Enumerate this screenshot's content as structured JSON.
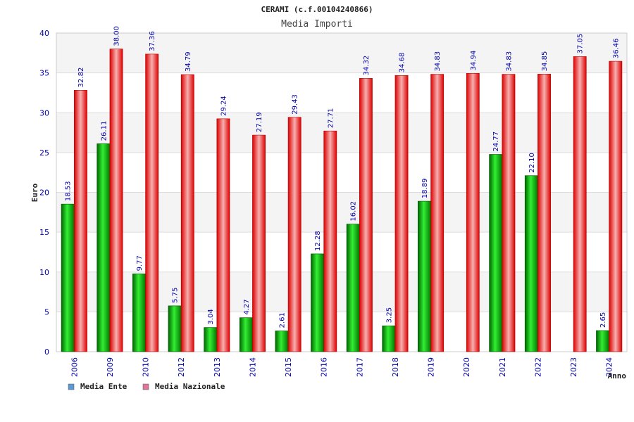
{
  "chart_data": {
    "type": "bar",
    "title": "CERAMI (c.f.00104240866)",
    "subtitle": "Media Importi",
    "xlabel": "Anno",
    "ylabel": "Euro",
    "ylim": [
      0,
      40
    ],
    "yticks": [
      0,
      5,
      10,
      15,
      20,
      25,
      30,
      35,
      40
    ],
    "grid": true,
    "legend_position": "bottom-left",
    "categories": [
      "2006",
      "2009",
      "2010",
      "2012",
      "2013",
      "2014",
      "2015",
      "2016",
      "2017",
      "2018",
      "2019",
      "2020",
      "2021",
      "2022",
      "2023",
      "2024"
    ],
    "series": [
      {
        "name": "Media Ente",
        "color": "#00aa00",
        "values": [
          18.53,
          26.11,
          9.77,
          5.75,
          3.04,
          4.27,
          2.61,
          12.28,
          16.02,
          3.25,
          18.89,
          null,
          24.77,
          22.1,
          null,
          2.65
        ],
        "labels": [
          "18.53",
          "26.11",
          "9.77",
          "5.75",
          "3.04",
          "4.27",
          "2.61",
          "12.28",
          "16.02",
          "3.25",
          "18.89",
          null,
          "24.77",
          "22.10",
          null,
          "2.65"
        ]
      },
      {
        "name": "Media Nazionale",
        "color": "#ee1111",
        "values": [
          32.82,
          38.0,
          37.36,
          34.79,
          29.24,
          27.19,
          29.43,
          27.71,
          34.32,
          34.68,
          34.83,
          34.94,
          34.83,
          34.85,
          37.05,
          36.46
        ],
        "labels": [
          "32.82",
          "38.00",
          "37.36",
          "34.79",
          "29.24",
          "27.19",
          "29.43",
          "27.71",
          "34.32",
          "34.68",
          "34.83",
          "34.94",
          "34.83",
          "34.85",
          "37.05",
          "36.46"
        ]
      }
    ],
    "legend": [
      {
        "label": "Media Ente",
        "swatch": "#5b9bd5"
      },
      {
        "label": "Media Nazionale",
        "swatch": "#e0779a"
      }
    ]
  }
}
